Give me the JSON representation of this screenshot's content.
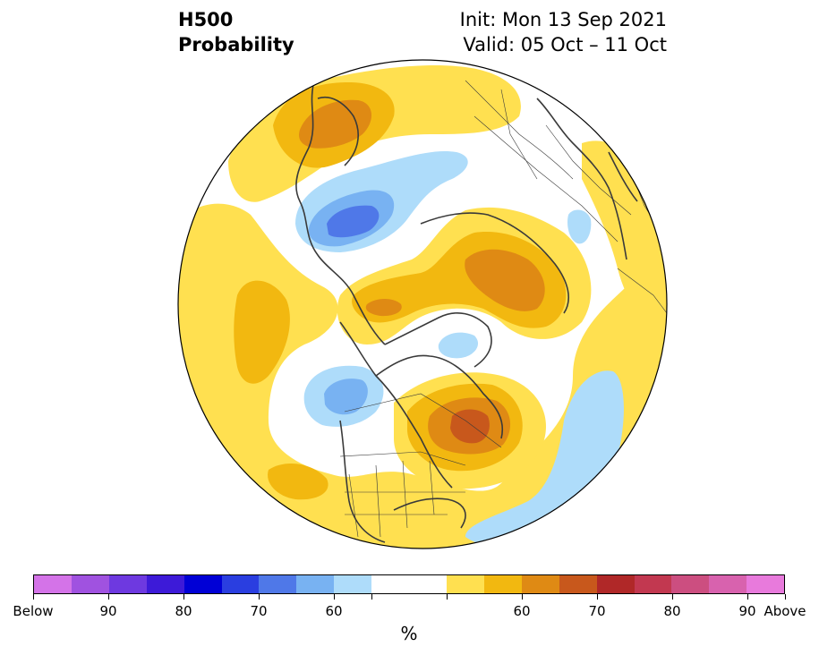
{
  "title": {
    "left_line1": "H500",
    "left_line2": "Probability",
    "right_line1": "Init: Mon 13 Sep 2021",
    "right_line2": "Valid: 05 Oct – 11 Oct"
  },
  "colorbar": {
    "colors": [
      "#d473e8",
      "#a052e0",
      "#6e39e0",
      "#3d1ad8",
      "#0000d6",
      "#2a3ee0",
      "#4f78e8",
      "#78b2f2",
      "#aedcfa",
      "#ffffff",
      "#ffffff",
      "#ffe050",
      "#f2b810",
      "#df8a14",
      "#c8581c",
      "#b02828",
      "#c23850",
      "#cc4e80",
      "#d862ae",
      "#e87adc"
    ],
    "tick_labels": [
      "Below",
      "90",
      "80",
      "70",
      "60",
      "",
      "",
      "60",
      "70",
      "80",
      "90",
      "Above"
    ],
    "unit": "%"
  },
  "map": {
    "projection": "north-polar-stereographic",
    "palette": {
      "below_60": "#aedcfa",
      "below_70": "#78b2f2",
      "below_80": "#4f78e8",
      "above_55": "#ffe050",
      "above_60": "#f2b810",
      "above_70": "#df8a14",
      "above_80": "#c8581c"
    },
    "boundary_color": "#3a3a3a"
  }
}
